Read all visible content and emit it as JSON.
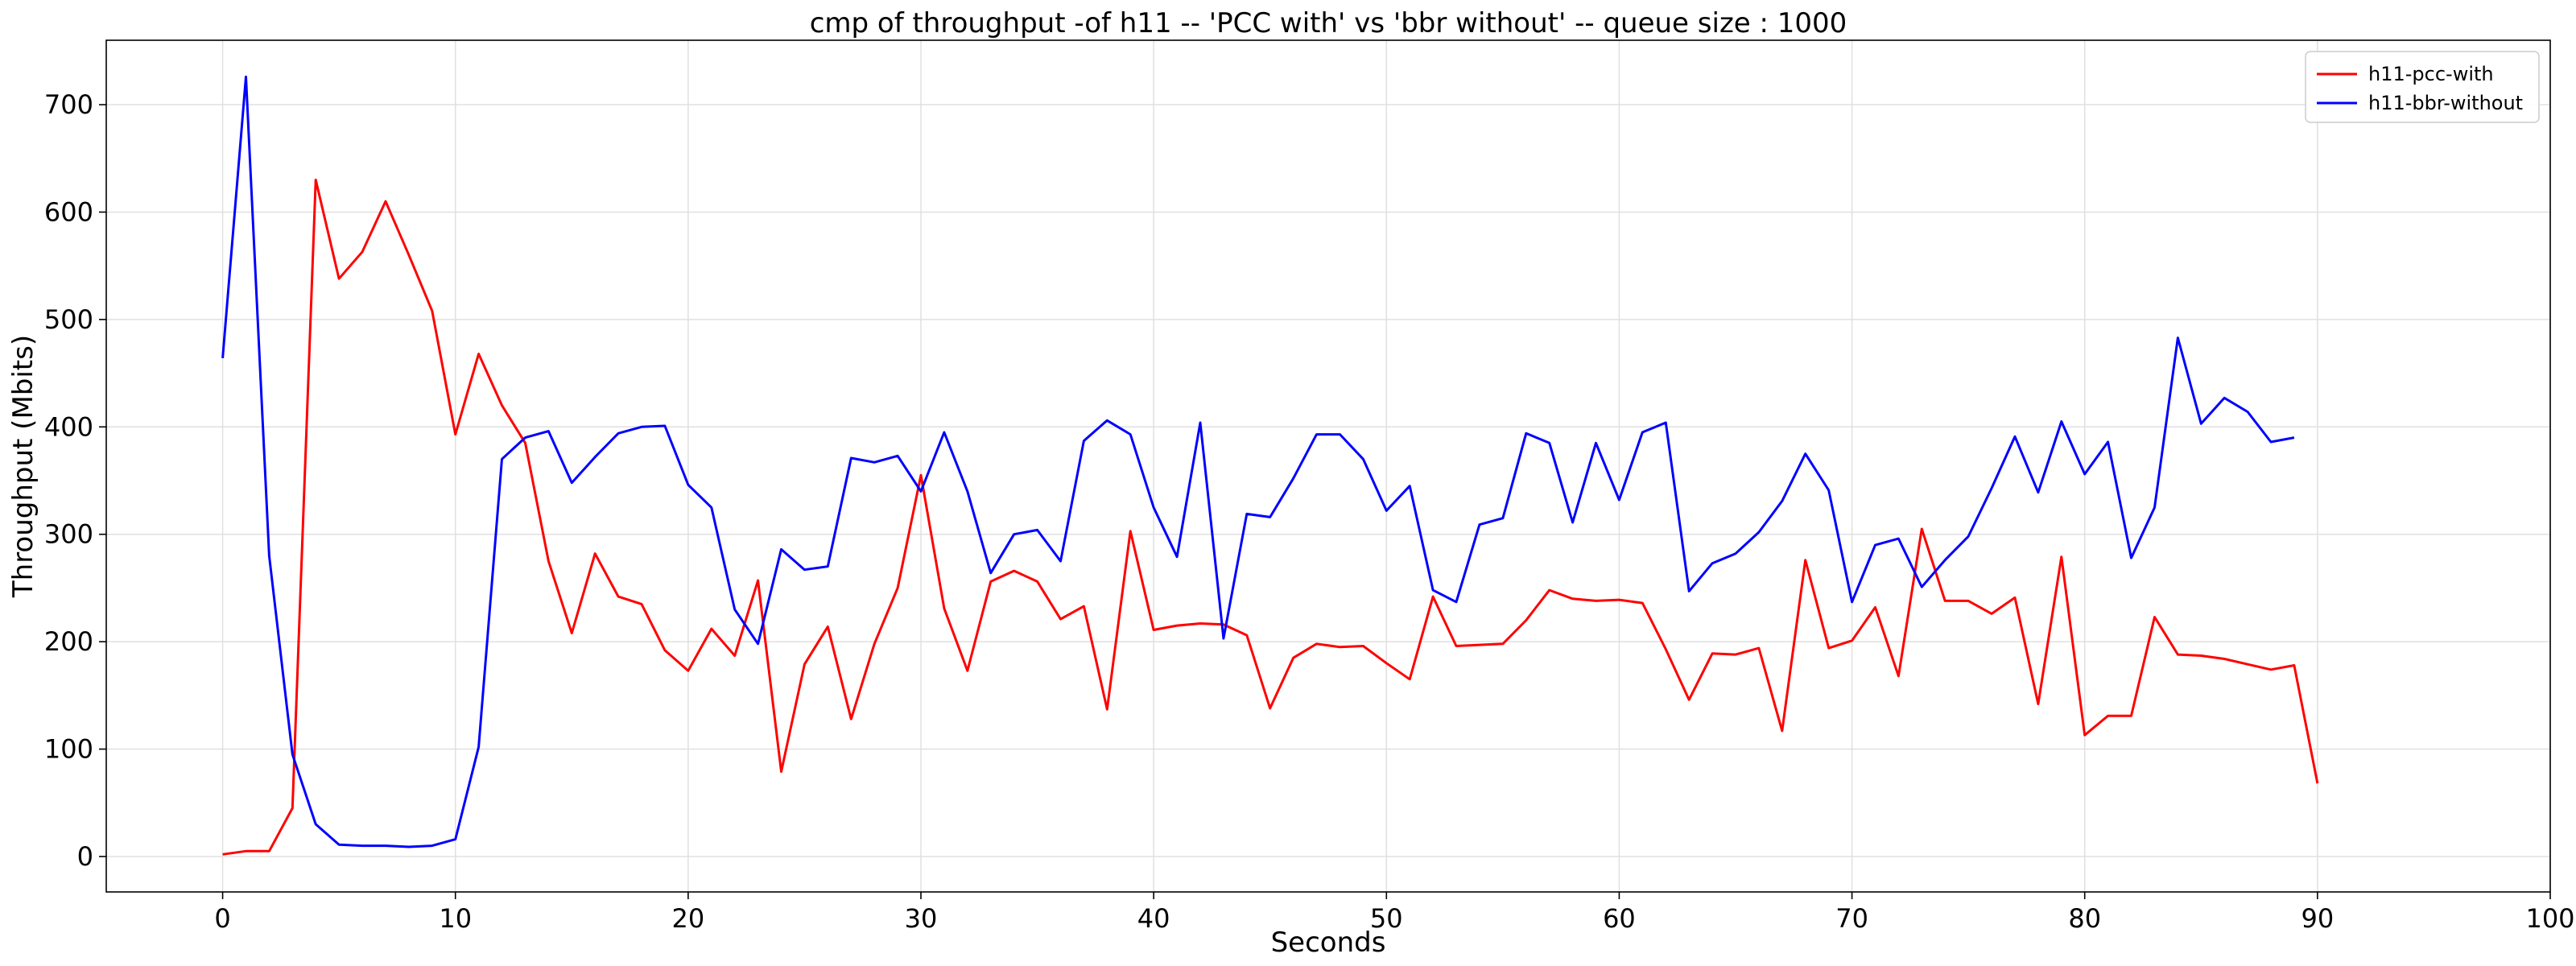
{
  "chart_data": {
    "type": "line",
    "title": "cmp of throughput -of h11 -- 'PCC with' vs 'bbr without' -- queue size : 1000",
    "xlabel": "Seconds",
    "ylabel": "Throughput (Mbits)",
    "xlim": [
      -5,
      100
    ],
    "ylim": [
      -33,
      760
    ],
    "xticks": [
      0,
      10,
      20,
      30,
      40,
      50,
      60,
      70,
      80,
      90,
      100
    ],
    "yticks": [
      0,
      100,
      200,
      300,
      400,
      500,
      600,
      700
    ],
    "grid": true,
    "legend_position": "top-right",
    "series": [
      {
        "name": "h11-pcc-with",
        "color": "#ff0000",
        "x": [
          0,
          1,
          2,
          3,
          4,
          5,
          6,
          7,
          8,
          9,
          10,
          11,
          12,
          13,
          14,
          15,
          16,
          17,
          18,
          19,
          20,
          21,
          22,
          23,
          24,
          25,
          26,
          27,
          28,
          29,
          30,
          31,
          32,
          33,
          34,
          35,
          36,
          37,
          38,
          39,
          40,
          41,
          42,
          43,
          44,
          45,
          46,
          47,
          48,
          49,
          50,
          51,
          52,
          53,
          54,
          55,
          56,
          57,
          58,
          59,
          60,
          61,
          62,
          63,
          64,
          65,
          66,
          67,
          68,
          69,
          70,
          71,
          72,
          73,
          74,
          75,
          76,
          77,
          78,
          79,
          80,
          81,
          82,
          83,
          84,
          85,
          86,
          87,
          88,
          89,
          90
        ],
        "y": [
          2,
          5,
          5,
          45,
          630,
          538,
          563,
          610,
          560,
          508,
          393,
          468,
          420,
          385,
          275,
          208,
          282,
          242,
          235,
          192,
          173,
          212,
          187,
          257,
          79,
          179,
          214,
          128,
          198,
          250,
          355,
          231,
          173,
          256,
          266,
          256,
          221,
          233,
          137,
          303,
          211,
          215,
          217,
          216,
          206,
          138,
          185,
          198,
          195,
          196,
          180,
          165,
          242,
          196,
          197,
          198,
          220,
          248,
          240,
          238,
          239,
          236,
          193,
          146,
          189,
          188,
          194,
          117,
          276,
          194,
          201,
          232,
          168,
          305,
          238,
          238,
          226,
          241,
          142,
          279,
          113,
          131,
          131,
          223,
          188,
          187,
          184,
          179,
          174,
          178,
          68
        ]
      },
      {
        "name": "h11-bbr-without",
        "color": "#0000ff",
        "x": [
          0,
          1,
          2,
          3,
          4,
          5,
          6,
          7,
          8,
          9,
          10,
          11,
          12,
          13,
          14,
          15,
          16,
          17,
          18,
          19,
          20,
          21,
          22,
          23,
          24,
          25,
          26,
          27,
          28,
          29,
          30,
          31,
          32,
          33,
          34,
          35,
          36,
          37,
          38,
          39,
          40,
          41,
          42,
          43,
          44,
          45,
          46,
          47,
          48,
          49,
          50,
          51,
          52,
          53,
          54,
          55,
          56,
          57,
          58,
          59,
          60,
          61,
          62,
          63,
          64,
          65,
          66,
          67,
          68,
          69,
          70,
          71,
          72,
          73,
          74,
          75,
          76,
          77,
          78,
          79,
          80,
          81,
          82,
          83,
          84,
          85,
          86,
          87,
          88,
          89
        ],
        "y": [
          464,
          726,
          280,
          95,
          30,
          11,
          10,
          10,
          9,
          10,
          16,
          102,
          370,
          390,
          396,
          348,
          372,
          394,
          400,
          401,
          346,
          325,
          230,
          198,
          286,
          267,
          270,
          371,
          367,
          373,
          340,
          395,
          340,
          264,
          300,
          304,
          275,
          387,
          406,
          393,
          325,
          279,
          404,
          203,
          319,
          316,
          352,
          393,
          393,
          370,
          322,
          345,
          248,
          237,
          309,
          315,
          394,
          385,
          311,
          385,
          332,
          395,
          404,
          247,
          273,
          282,
          302,
          331,
          375,
          341,
          237,
          290,
          296,
          251,
          276,
          298,
          343,
          391,
          339,
          405,
          356,
          386,
          278,
          325,
          483,
          403,
          427,
          414,
          386,
          390
        ]
      }
    ]
  }
}
